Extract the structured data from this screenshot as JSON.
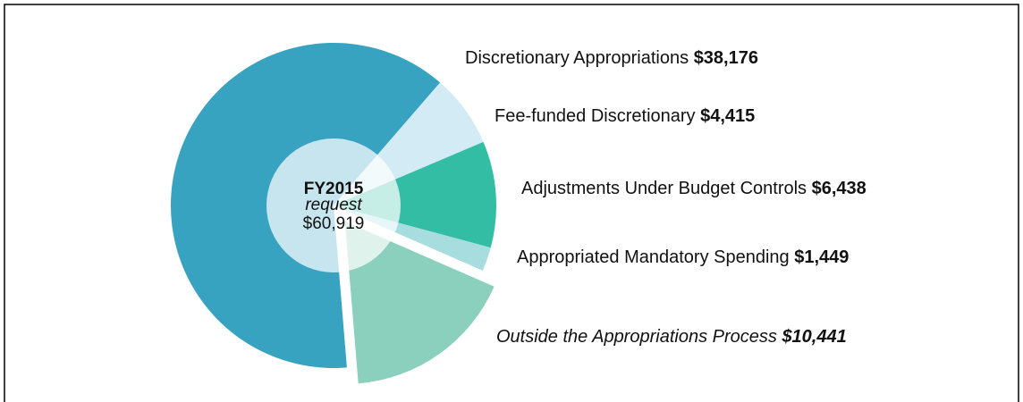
{
  "chart_data": {
    "type": "pie",
    "center_label": {
      "title": "FY2015",
      "subtitle": "request",
      "total": "$60,919"
    },
    "categories": [
      "Discretionary Appropriations",
      "Fee-funded Discretionary",
      "Adjustments Under Budget Controls",
      "Appropriated Mandatory Spending",
      "Outside the Appropriations Process"
    ],
    "values": [
      38176,
      4415,
      6438,
      1449,
      10441
    ],
    "value_labels": [
      "$38,176",
      "$4,415",
      "$6,438",
      "$1,449",
      "$10,441"
    ],
    "colors": [
      "#38a3c1",
      "#d3ebf4",
      "#33bda5",
      "#a8dde0",
      "#8bd0bc"
    ],
    "explode": [
      false,
      false,
      false,
      false,
      true
    ],
    "italic": [
      false,
      false,
      false,
      false,
      true
    ]
  }
}
